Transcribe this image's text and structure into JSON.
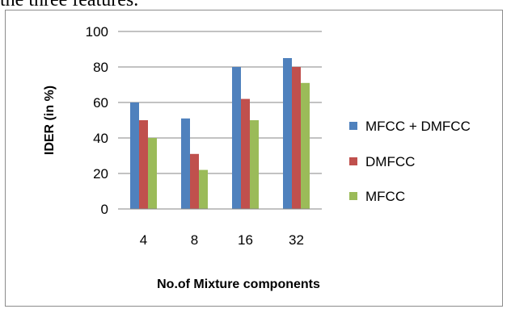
{
  "caption": "the three features.",
  "chart_data": {
    "type": "bar",
    "categories": [
      "4",
      "8",
      "16",
      "32"
    ],
    "series": [
      {
        "name": "MFCC + DMFCC",
        "color": "#4f81bd",
        "values": [
          60,
          51,
          80,
          85
        ]
      },
      {
        "name": "DMFCC",
        "color": "#c0504d",
        "values": [
          50,
          31,
          62,
          80
        ]
      },
      {
        "name": "MFCC",
        "color": "#9bbb59",
        "values": [
          40,
          22,
          50,
          71
        ]
      }
    ],
    "xlabel": "No.of Mixture components",
    "ylabel": "IDER (in %)",
    "ylim": [
      0,
      100
    ],
    "yticks": [
      0,
      20,
      40,
      60,
      80,
      100
    ],
    "grid": true,
    "legend": "right"
  }
}
